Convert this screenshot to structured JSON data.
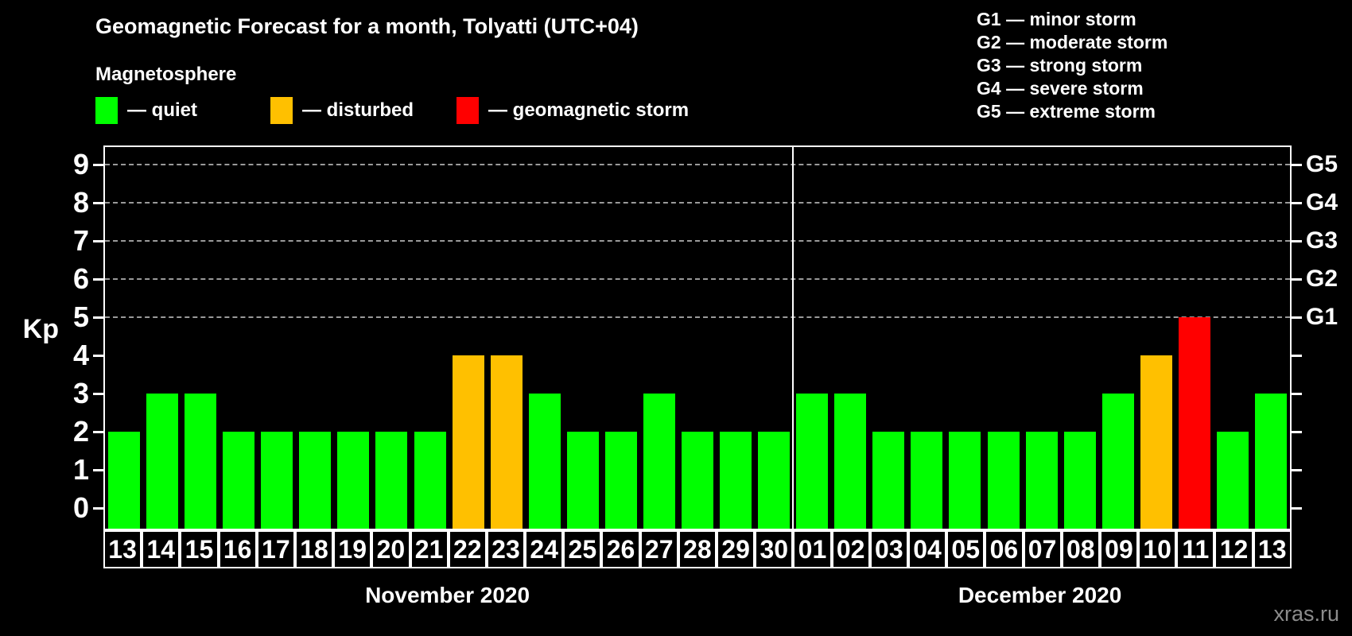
{
  "title": "Geomagnetic Forecast for a month, Tolyatti (UTC+04)",
  "subtitle": "Magnetosphere",
  "legend": {
    "quiet": "— quiet",
    "disturbed": "— disturbed",
    "storm": "— geomagnetic storm"
  },
  "g_legend": [
    "G1 — minor storm",
    "G2 — moderate storm",
    "G3 — strong storm",
    "G4 — severe storm",
    "G5 — extreme storm"
  ],
  "watermark": "xras.ru",
  "colors": {
    "quiet": "#00ff00",
    "disturbed": "#ffc000",
    "storm": "#ff0000",
    "axis": "#ffffff",
    "gridline": "#9a9a9a",
    "background": "#000000"
  },
  "chart_data": {
    "type": "bar",
    "title": "Geomagnetic Forecast for a month, Tolyatti (UTC+04)",
    "xlabel": "",
    "ylabel": "Kp",
    "ylim": [
      0,
      9
    ],
    "y_ticks": [
      0,
      1,
      2,
      3,
      4,
      5,
      6,
      7,
      8,
      9
    ],
    "gridlines_at": [
      5,
      6,
      7,
      8,
      9
    ],
    "grid": "dashed horizontal at storm levels only",
    "legend_position": "top",
    "right_axis_labels": [
      {
        "value": 5,
        "label": "G1"
      },
      {
        "value": 6,
        "label": "G2"
      },
      {
        "value": 7,
        "label": "G3"
      },
      {
        "value": 8,
        "label": "G4"
      },
      {
        "value": 9,
        "label": "G5"
      }
    ],
    "series_groups": [
      {
        "month": "November 2020",
        "points": [
          {
            "day": "13",
            "kp": 2,
            "status": "quiet"
          },
          {
            "day": "14",
            "kp": 3,
            "status": "quiet"
          },
          {
            "day": "15",
            "kp": 3,
            "status": "quiet"
          },
          {
            "day": "16",
            "kp": 2,
            "status": "quiet"
          },
          {
            "day": "17",
            "kp": 2,
            "status": "quiet"
          },
          {
            "day": "18",
            "kp": 2,
            "status": "quiet"
          },
          {
            "day": "19",
            "kp": 2,
            "status": "quiet"
          },
          {
            "day": "20",
            "kp": 2,
            "status": "quiet"
          },
          {
            "day": "21",
            "kp": 2,
            "status": "quiet"
          },
          {
            "day": "22",
            "kp": 4,
            "status": "disturbed"
          },
          {
            "day": "23",
            "kp": 4,
            "status": "disturbed"
          },
          {
            "day": "24",
            "kp": 3,
            "status": "quiet"
          },
          {
            "day": "25",
            "kp": 2,
            "status": "quiet"
          },
          {
            "day": "26",
            "kp": 2,
            "status": "quiet"
          },
          {
            "day": "27",
            "kp": 3,
            "status": "quiet"
          },
          {
            "day": "28",
            "kp": 2,
            "status": "quiet"
          },
          {
            "day": "29",
            "kp": 2,
            "status": "quiet"
          },
          {
            "day": "30",
            "kp": 2,
            "status": "quiet"
          }
        ]
      },
      {
        "month": "December 2020",
        "points": [
          {
            "day": "01",
            "kp": 3,
            "status": "quiet"
          },
          {
            "day": "02",
            "kp": 3,
            "status": "quiet"
          },
          {
            "day": "03",
            "kp": 2,
            "status": "quiet"
          },
          {
            "day": "04",
            "kp": 2,
            "status": "quiet"
          },
          {
            "day": "05",
            "kp": 2,
            "status": "quiet"
          },
          {
            "day": "06",
            "kp": 2,
            "status": "quiet"
          },
          {
            "day": "07",
            "kp": 2,
            "status": "quiet"
          },
          {
            "day": "08",
            "kp": 2,
            "status": "quiet"
          },
          {
            "day": "09",
            "kp": 3,
            "status": "quiet"
          },
          {
            "day": "10",
            "kp": 4,
            "status": "disturbed"
          },
          {
            "day": "11",
            "kp": 5,
            "status": "storm"
          },
          {
            "day": "12",
            "kp": 2,
            "status": "quiet"
          },
          {
            "day": "13",
            "kp": 3,
            "status": "quiet"
          }
        ]
      }
    ]
  }
}
